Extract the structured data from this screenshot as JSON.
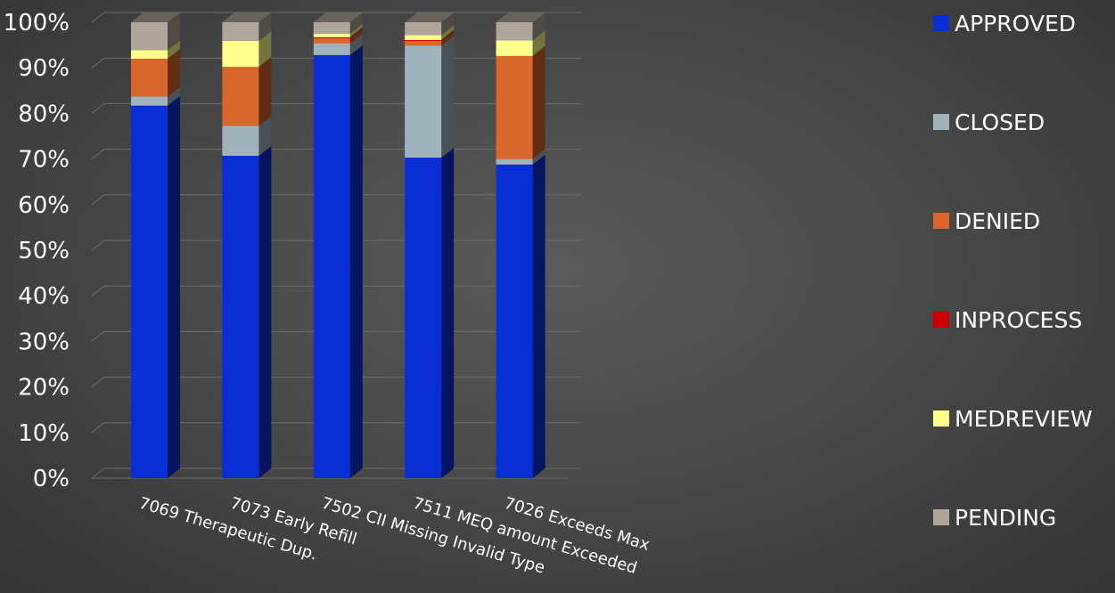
{
  "chart_data": {
    "type": "bar",
    "stacked": true,
    "percent_stacked": true,
    "three_d": true,
    "categories": [
      "7069 Therapeutic Dup.",
      "7073 Early Refill",
      "7502 CII Missing Invalid Type",
      "7511 MEQ amount Exceeded",
      "7026 Exceeds Max"
    ],
    "series": [
      {
        "name": "APPROVED",
        "color": "#0a2ed6",
        "values": [
          81.7,
          70.7,
          92.8,
          70.3,
          68.8
        ]
      },
      {
        "name": "CLOSED",
        "color": "#9fb3bd",
        "values": [
          2.0,
          6.6,
          2.6,
          24.6,
          1.2
        ]
      },
      {
        "name": "DENIED",
        "color": "#d9662b",
        "values": [
          8.3,
          12.9,
          1.1,
          1.0,
          22.6
        ]
      },
      {
        "name": "INPROCESS",
        "color": "#cc0000",
        "values": [
          0.0,
          0.0,
          0.2,
          0.2,
          0.0
        ]
      },
      {
        "name": "MEDREVIEW",
        "color": "#ffff8c",
        "values": [
          1.9,
          5.7,
          0.8,
          1.1,
          3.4
        ]
      },
      {
        "name": "PENDING",
        "color": "#aea59b",
        "values": [
          6.1,
          4.1,
          2.5,
          2.8,
          4.0
        ]
      }
    ],
    "ylim": [
      0,
      100
    ],
    "yticks": [
      "0%",
      "10%",
      "20%",
      "30%",
      "40%",
      "50%",
      "60%",
      "70%",
      "80%",
      "90%",
      "100%"
    ],
    "grid": true,
    "legend_position": "right"
  }
}
